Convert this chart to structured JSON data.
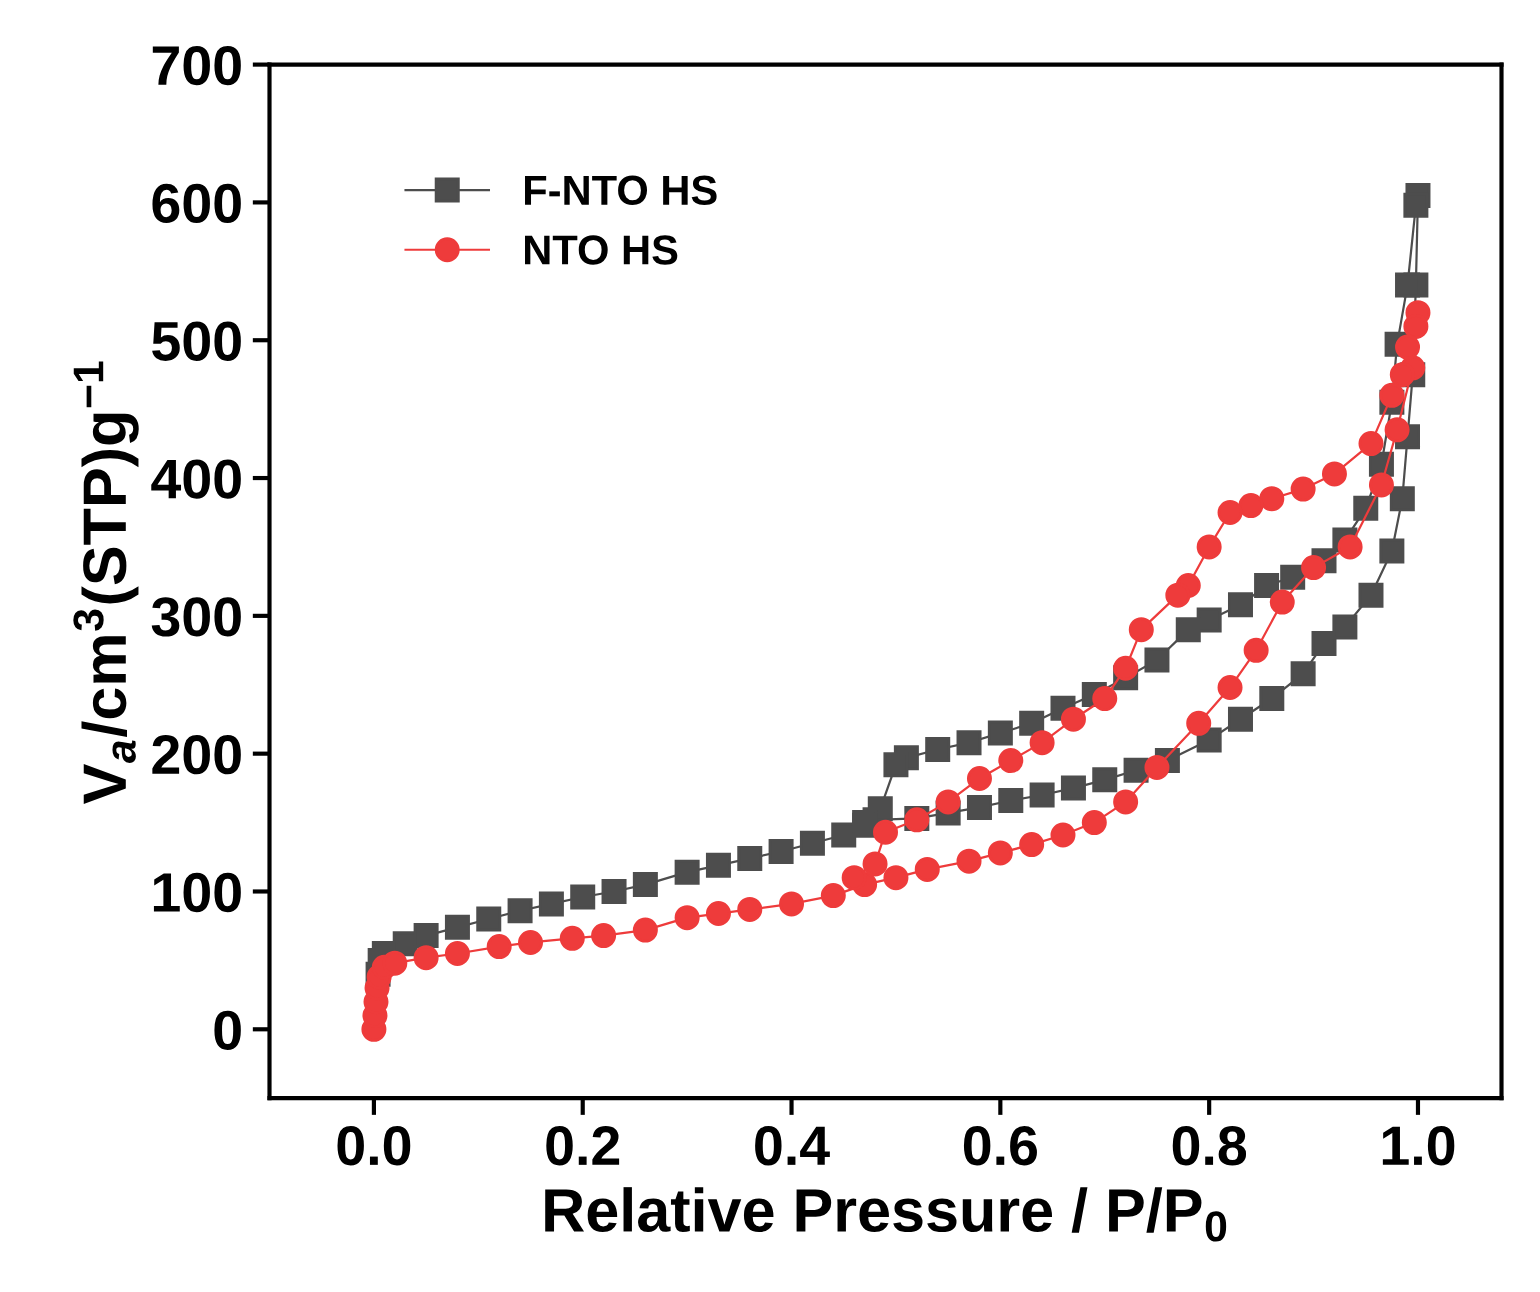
{
  "chart_data": {
    "type": "line",
    "xlabel": "Relative Pressure / P/P$_{0}$",
    "ylabel": "V$_{a}$/cm$^{3}$(STP)g$^{−1}$",
    "xlim": [
      -0.1,
      1.08
    ],
    "ylim": [
      -50,
      700
    ],
    "xticks": [
      {
        "value": 0,
        "label": "0.0"
      },
      {
        "value": 0.2,
        "label": "0.2"
      },
      {
        "value": 0.4,
        "label": "0.4"
      },
      {
        "value": 0.6,
        "label": "0.6"
      },
      {
        "value": 0.8,
        "label": "0.8"
      },
      {
        "value": 1,
        "label": "1.0"
      }
    ],
    "yticks": [
      0,
      100,
      200,
      300,
      400,
      500,
      600,
      700
    ],
    "grid": false,
    "legend": "top left",
    "series": [
      {
        "name": "F-NTO HS",
        "color": "#4d4d4d",
        "marker": "square",
        "x": [
          0.004,
          0.006,
          0.01,
          0.03,
          0.05,
          0.08,
          0.11,
          0.14,
          0.17,
          0.2,
          0.23,
          0.26,
          0.3,
          0.33,
          0.36,
          0.39,
          0.42,
          0.45,
          0.47,
          0.48,
          0.52,
          0.55,
          0.58,
          0.61,
          0.64,
          0.67,
          0.7,
          0.73,
          0.76,
          0.8,
          0.83,
          0.86,
          0.89,
          0.91,
          0.93,
          0.955,
          0.975,
          0.985,
          0.99,
          0.995,
          0.998,
          1.0,
          0.998,
          0.99,
          0.98,
          0.975,
          0.965,
          0.95,
          0.93,
          0.91,
          0.88,
          0.855,
          0.83,
          0.8,
          0.78,
          0.75,
          0.72,
          0.69,
          0.66,
          0.63,
          0.6,
          0.57,
          0.54,
          0.51,
          0.5,
          0.485,
          0.47
        ],
        "values": [
          40,
          50,
          55,
          62,
          68,
          74,
          80,
          86,
          91,
          96,
          100,
          105,
          114,
          119,
          124,
          129,
          135,
          141,
          148,
          152,
          153,
          157,
          161,
          166,
          170,
          175,
          181,
          188,
          195,
          210,
          225,
          240,
          258,
          280,
          292,
          315,
          347,
          385,
          430,
          475,
          540,
          605,
          598,
          540,
          497,
          455,
          410,
          378,
          355,
          340,
          328,
          322,
          308,
          297,
          290,
          268,
          255,
          243,
          233,
          222,
          215,
          208,
          203,
          197,
          192,
          160,
          150
        ]
      },
      {
        "name": "NTO HS",
        "color": "#ee3b3b",
        "marker": "circle",
        "x": [
          0.0,
          0.001,
          0.002,
          0.003,
          0.005,
          0.01,
          0.02,
          0.05,
          0.08,
          0.12,
          0.15,
          0.19,
          0.22,
          0.26,
          0.3,
          0.33,
          0.36,
          0.4,
          0.44,
          0.47,
          0.5,
          0.53,
          0.57,
          0.6,
          0.63,
          0.66,
          0.69,
          0.72,
          0.75,
          0.79,
          0.82,
          0.845,
          0.87,
          0.9,
          0.935,
          0.965,
          0.98,
          0.995,
          1.0,
          0.998,
          0.99,
          0.985,
          0.975,
          0.955,
          0.92,
          0.89,
          0.86,
          0.84,
          0.82,
          0.8,
          0.78,
          0.77,
          0.735,
          0.72,
          0.7,
          0.67,
          0.64,
          0.61,
          0.58,
          0.55,
          0.52,
          0.49,
          0.48,
          0.46
        ],
        "values": [
          0,
          10,
          20,
          30,
          38,
          45,
          48,
          52,
          55,
          60,
          63,
          66,
          68,
          72,
          81,
          84,
          87,
          91,
          97,
          105,
          110,
          116,
          122,
          128,
          134,
          141,
          150,
          165,
          190,
          222,
          248,
          275,
          310,
          335,
          350,
          395,
          435,
          480,
          520,
          510,
          495,
          475,
          460,
          425,
          403,
          392,
          385,
          380,
          375,
          350,
          322,
          315,
          290,
          262,
          240,
          225,
          208,
          195,
          182,
          165,
          152,
          143,
          120,
          110
        ]
      }
    ]
  }
}
